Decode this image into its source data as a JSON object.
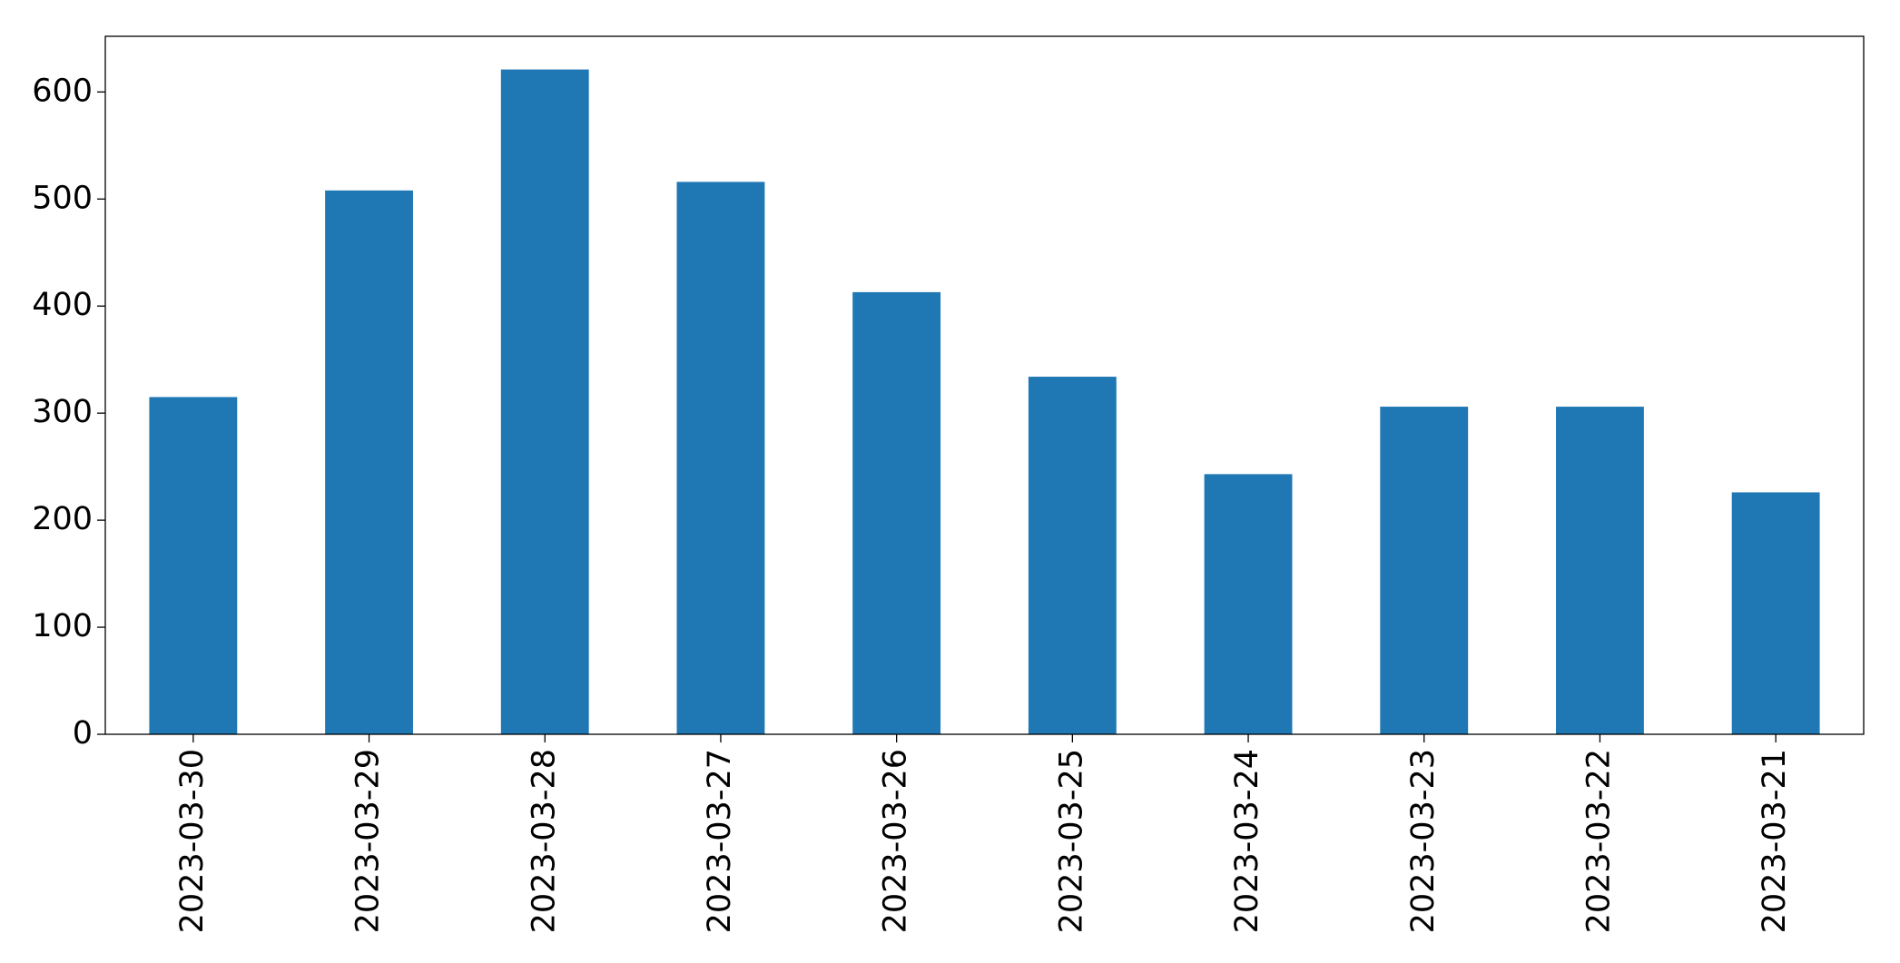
{
  "chart_data": {
    "type": "bar",
    "categories": [
      "2023-03-30",
      "2023-03-29",
      "2023-03-28",
      "2023-03-27",
      "2023-03-26",
      "2023-03-25",
      "2023-03-24",
      "2023-03-23",
      "2023-03-22",
      "2023-03-21"
    ],
    "values": [
      315,
      508,
      621,
      516,
      413,
      334,
      243,
      306,
      306,
      226
    ],
    "color": "#1f77b4",
    "ylim": [
      0,
      652
    ],
    "yticks": [
      0,
      100,
      200,
      300,
      400,
      500,
      600
    ],
    "grid": false
  }
}
